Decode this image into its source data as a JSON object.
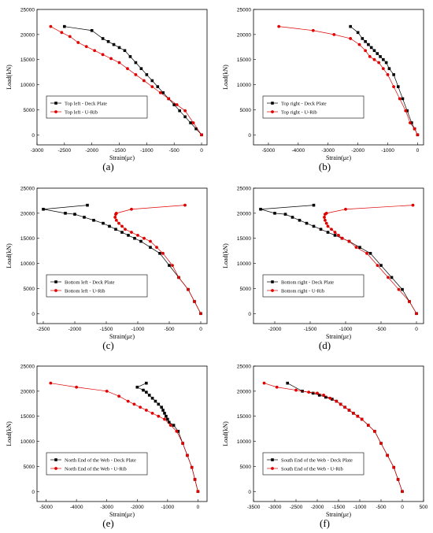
{
  "chart_data": [
    {
      "type": "line",
      "caption": "(a)",
      "xlabel": "Strain(με)",
      "ylabel": "Load(kN)",
      "xlim": [
        -3000,
        100
      ],
      "ylim": [
        -2000,
        25000
      ],
      "xticks": [
        -3000,
        -2500,
        -2000,
        -1500,
        -1000,
        -500,
        0
      ],
      "yticks": [
        0,
        5000,
        10000,
        15000,
        20000,
        25000
      ],
      "legend_position": "lower-left",
      "series": [
        {
          "name": "Top left - Deck Plate",
          "color": "#000000",
          "marker": "square",
          "x": [
            0,
            -100,
            -200,
            -300,
            -400,
            -500,
            -600,
            -700,
            -800,
            -900,
            -1000,
            -1100,
            -1200,
            -1300,
            -1400,
            -1500,
            -1600,
            -1700,
            -1800,
            -2000,
            -2500
          ],
          "y": [
            0,
            1200,
            2400,
            3600,
            4800,
            6000,
            7200,
            8400,
            9600,
            10800,
            12000,
            13200,
            14400,
            15600,
            16800,
            17400,
            18000,
            18600,
            19200,
            20800,
            21600
          ]
        },
        {
          "name": "Top left - U-Rib",
          "color": "#e00000",
          "marker": "circle",
          "x": [
            0,
            -150,
            -300,
            -450,
            -600,
            -750,
            -900,
            -1050,
            -1200,
            -1350,
            -1500,
            -1650,
            -1800,
            -1950,
            -2100,
            -2250,
            -2400,
            -2550,
            -2750
          ],
          "y": [
            0,
            2400,
            4800,
            6000,
            7200,
            8400,
            9600,
            10800,
            12000,
            13200,
            14400,
            15200,
            16000,
            16800,
            17600,
            18400,
            19600,
            20400,
            21600
          ]
        }
      ]
    },
    {
      "type": "line",
      "caption": "(b)",
      "xlabel": "Strain(με)",
      "ylabel": "Load(kN)",
      "xlim": [
        -5500,
        200
      ],
      "ylim": [
        -2000,
        25000
      ],
      "xticks": [
        -5000,
        -4000,
        -3000,
        -2000,
        -1000,
        0
      ],
      "yticks": [
        0,
        5000,
        10000,
        15000,
        20000,
        25000
      ],
      "legend_position": "lower-left",
      "series": [
        {
          "name": "Top right - Deck Plate",
          "color": "#000000",
          "marker": "square",
          "x": [
            0,
            -100,
            -200,
            -350,
            -500,
            -650,
            -800,
            -950,
            -1050,
            -1150,
            -1250,
            -1350,
            -1450,
            -1550,
            -1650,
            -1750,
            -1850,
            -2000,
            -2250
          ],
          "y": [
            0,
            1200,
            2400,
            4800,
            7200,
            9600,
            12000,
            13200,
            14400,
            15000,
            15600,
            16200,
            16800,
            17400,
            18000,
            18600,
            19200,
            20400,
            21600
          ]
        },
        {
          "name": "Top right - U-Rib",
          "color": "#e00000",
          "marker": "circle",
          "x": [
            0,
            -100,
            -250,
            -400,
            -600,
            -800,
            -1000,
            -1150,
            -1300,
            -1450,
            -1600,
            -1750,
            -1950,
            -2250,
            -2800,
            -3500,
            -4650
          ],
          "y": [
            0,
            1200,
            2400,
            4800,
            7200,
            9600,
            12000,
            13200,
            14400,
            15000,
            15600,
            16800,
            18000,
            19200,
            20000,
            20800,
            21600
          ]
        }
      ]
    },
    {
      "type": "line",
      "caption": "(c)",
      "xlabel": "Strain(με)",
      "ylabel": "Load(kN)",
      "xlim": [
        -2600,
        100
      ],
      "ylim": [
        -2000,
        25000
      ],
      "xticks": [
        -2500,
        -2000,
        -1500,
        -1000,
        -500,
        0
      ],
      "yticks": [
        0,
        5000,
        10000,
        15000,
        20000,
        25000
      ],
      "legend_position": "lower-left",
      "series": [
        {
          "name": "Bottom left - Deck Plate",
          "color": "#000000",
          "marker": "square",
          "x": [
            0,
            -100,
            -200,
            -350,
            -500,
            -650,
            -800,
            -950,
            -1050,
            -1150,
            -1250,
            -1350,
            -1450,
            -1550,
            -1700,
            -1850,
            -2000,
            -2150,
            -2500,
            -1800
          ],
          "y": [
            0,
            2400,
            4800,
            7200,
            9600,
            12000,
            13200,
            14400,
            15000,
            15600,
            16200,
            16800,
            17400,
            18000,
            18600,
            19200,
            19800,
            20000,
            20800,
            21600
          ]
        },
        {
          "name": "Bottom left - U-Rib",
          "color": "#e00000",
          "marker": "circle",
          "x": [
            0,
            -100,
            -200,
            -350,
            -450,
            -600,
            -700,
            -800,
            -900,
            -1000,
            -1100,
            -1200,
            -1250,
            -1300,
            -1340,
            -1360,
            -1350,
            -1340,
            -1100,
            -250
          ],
          "y": [
            0,
            2400,
            4800,
            7200,
            9600,
            12000,
            13200,
            14400,
            15000,
            15600,
            16200,
            16800,
            17400,
            18000,
            18600,
            19200,
            19800,
            20000,
            20800,
            21600
          ]
        }
      ]
    },
    {
      "type": "line",
      "caption": "(d)",
      "xlabel": "Strain(με)",
      "ylabel": "Load(kN)",
      "xlim": [
        -2300,
        100
      ],
      "ylim": [
        -2000,
        25000
      ],
      "xticks": [
        -2000,
        -1500,
        -1000,
        -500,
        0
      ],
      "yticks": [
        0,
        5000,
        10000,
        15000,
        20000,
        25000
      ],
      "legend_position": "lower-left",
      "series": [
        {
          "name": "Bottom right - Deck Plate",
          "color": "#000000",
          "marker": "square",
          "x": [
            0,
            -100,
            -200,
            -350,
            -500,
            -650,
            -800,
            -950,
            -1050,
            -1150,
            -1250,
            -1350,
            -1450,
            -1550,
            -1650,
            -1750,
            -1850,
            -2000,
            -2200,
            -1450
          ],
          "y": [
            0,
            2400,
            4800,
            7200,
            9600,
            12000,
            13200,
            14400,
            15000,
            15600,
            16200,
            16800,
            17400,
            18000,
            18600,
            19200,
            19800,
            20000,
            20800,
            21600
          ]
        },
        {
          "name": "Bottom right - U-Rib",
          "color": "#e00000",
          "marker": "circle",
          "x": [
            0,
            -100,
            -250,
            -400,
            -550,
            -700,
            -850,
            -950,
            -1050,
            -1100,
            -1150,
            -1200,
            -1250,
            -1270,
            -1290,
            -1300,
            -1290,
            -1270,
            -1000,
            -50
          ],
          "y": [
            0,
            2400,
            4800,
            7200,
            9600,
            12000,
            13200,
            14400,
            15000,
            15600,
            16200,
            16800,
            17400,
            18000,
            18600,
            19200,
            19800,
            20000,
            20800,
            21600
          ]
        }
      ]
    },
    {
      "type": "line",
      "caption": "(e)",
      "xlabel": "Strain(με)",
      "ylabel": "Load(kN)",
      "xlim": [
        -5300,
        300
      ],
      "ylim": [
        -2000,
        25000
      ],
      "xticks": [
        -5000,
        -4000,
        -3000,
        -2000,
        -1000,
        0
      ],
      "yticks": [
        0,
        5000,
        10000,
        15000,
        20000,
        25000
      ],
      "legend_position": "lower-left",
      "series": [
        {
          "name": "North End of the Web - Deck Plate",
          "color": "#000000",
          "marker": "square",
          "x": [
            0,
            -100,
            -200,
            -350,
            -500,
            -650,
            -800,
            -950,
            -1000,
            -1050,
            -1100,
            -1150,
            -1200,
            -1300,
            -1400,
            -1500,
            -1600,
            -1700,
            -1800,
            -2000,
            -1700
          ],
          "y": [
            0,
            2400,
            4800,
            7200,
            9600,
            12000,
            13200,
            13800,
            14400,
            15000,
            15600,
            16200,
            16800,
            17400,
            18000,
            18600,
            19200,
            19800,
            20200,
            20800,
            21600
          ]
        },
        {
          "name": "North End of the Web - U-Rib",
          "color": "#e00000",
          "marker": "circle",
          "x": [
            0,
            -100,
            -200,
            -350,
            -500,
            -700,
            -900,
            -1100,
            -1300,
            -1500,
            -1700,
            -1900,
            -2100,
            -2300,
            -2600,
            -3000,
            -4000,
            -4850
          ],
          "y": [
            0,
            2400,
            4800,
            7200,
            9600,
            12000,
            13200,
            14400,
            15000,
            15600,
            16200,
            16800,
            17400,
            18000,
            19000,
            20000,
            20800,
            21600
          ]
        }
      ]
    },
    {
      "type": "line",
      "caption": "(f)",
      "xlabel": "Strain(με)",
      "ylabel": "Load(kN)",
      "xlim": [
        -3500,
        500
      ],
      "ylim": [
        -2000,
        25000
      ],
      "xticks": [
        -3500,
        -3000,
        -2500,
        -2000,
        -1500,
        -1000,
        -500,
        0,
        500
      ],
      "yticks": [
        0,
        5000,
        10000,
        15000,
        20000,
        25000
      ],
      "legend_position": "lower-left",
      "series": [
        {
          "name": "South End of the Web - Deck Plate",
          "color": "#000000",
          "marker": "square",
          "x": [
            0,
            -100,
            -200,
            -350,
            -500,
            -650,
            -800,
            -950,
            -1050,
            -1150,
            -1250,
            -1350,
            -1450,
            -1550,
            -1650,
            -1800,
            -1950,
            -2100,
            -2350,
            -2700
          ],
          "y": [
            0,
            2400,
            4800,
            7200,
            9600,
            12000,
            13200,
            14400,
            15000,
            15600,
            16200,
            16800,
            17400,
            18000,
            18400,
            18800,
            19200,
            19600,
            20000,
            21600
          ]
        },
        {
          "name": "South End of the Web - U-Rib",
          "color": "#e00000",
          "marker": "circle",
          "x": [
            0,
            -100,
            -200,
            -350,
            -500,
            -650,
            -800,
            -950,
            -1050,
            -1150,
            -1250,
            -1350,
            -1450,
            -1550,
            -1700,
            -1850,
            -2000,
            -2200,
            -2500,
            -2950,
            -3250
          ],
          "y": [
            0,
            2400,
            4800,
            7200,
            9600,
            12000,
            13200,
            14400,
            15000,
            15600,
            16200,
            16800,
            17400,
            18000,
            18600,
            19200,
            19600,
            19800,
            20200,
            20800,
            21600
          ]
        }
      ]
    }
  ]
}
